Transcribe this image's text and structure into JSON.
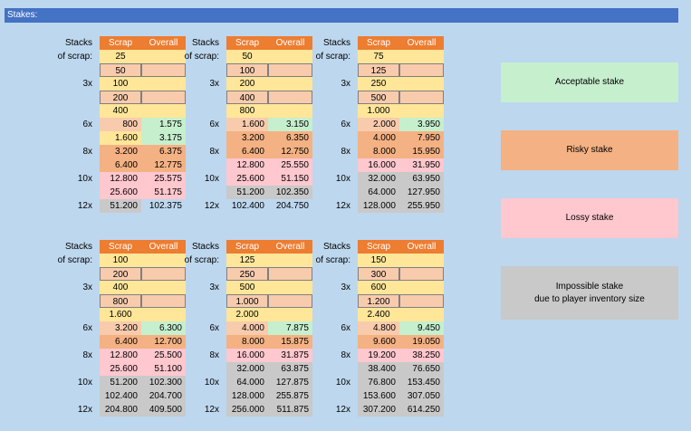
{
  "title": "Stakes:",
  "header": {
    "stacks": "Stacks",
    "of_scrap": "of scrap:",
    "scrap": "Scrap",
    "overall": "Overall"
  },
  "blocks": [
    {
      "rows": [
        {
          "m": "",
          "s": "25",
          "o": "",
          "sc": "y",
          "oc": "y"
        },
        {
          "m": "",
          "s": "50",
          "o": "",
          "sc": "o",
          "oc": "o"
        },
        {
          "m": "3x",
          "s": "100",
          "o": "",
          "sc": "y",
          "oc": "y"
        },
        {
          "m": "",
          "s": "200",
          "o": "",
          "sc": "o",
          "oc": "o"
        },
        {
          "m": "",
          "s": "400",
          "o": "",
          "sc": "y",
          "oc": "y"
        },
        {
          "m": "6x",
          "s": "800",
          "o": "1.575",
          "sc": "o",
          "oc": "g"
        },
        {
          "m": "",
          "s": "1.600",
          "o": "3.175",
          "sc": "y",
          "oc": "g"
        },
        {
          "m": "8x",
          "s": "3.200",
          "o": "6.375",
          "sc": "r",
          "oc": "r"
        },
        {
          "m": "",
          "s": "6.400",
          "o": "12.775",
          "sc": "r",
          "oc": "r"
        },
        {
          "m": "10x",
          "s": "12.800",
          "o": "25.575",
          "sc": "p",
          "oc": "p"
        },
        {
          "m": "",
          "s": "25.600",
          "o": "51.175",
          "sc": "p",
          "oc": "p"
        },
        {
          "m": "12x",
          "s": "51.200",
          "o": "102.375",
          "sc": "gr",
          "oc": "w"
        }
      ]
    },
    {
      "rows": [
        {
          "m": "",
          "s": "50",
          "o": "",
          "sc": "y",
          "oc": "y"
        },
        {
          "m": "",
          "s": "100",
          "o": "",
          "sc": "o",
          "oc": "o"
        },
        {
          "m": "3x",
          "s": "200",
          "o": "",
          "sc": "y",
          "oc": "y"
        },
        {
          "m": "",
          "s": "400",
          "o": "",
          "sc": "o",
          "oc": "o"
        },
        {
          "m": "",
          "s": "800",
          "o": "",
          "sc": "y",
          "oc": "y"
        },
        {
          "m": "6x",
          "s": "1.600",
          "o": "3.150",
          "sc": "o",
          "oc": "g"
        },
        {
          "m": "",
          "s": "3.200",
          "o": "6.350",
          "sc": "r",
          "oc": "r"
        },
        {
          "m": "8x",
          "s": "6.400",
          "o": "12.750",
          "sc": "r",
          "oc": "r"
        },
        {
          "m": "",
          "s": "12.800",
          "o": "25.550",
          "sc": "p",
          "oc": "p"
        },
        {
          "m": "10x",
          "s": "25.600",
          "o": "51.150",
          "sc": "p",
          "oc": "p"
        },
        {
          "m": "",
          "s": "51.200",
          "o": "102.350",
          "sc": "gr",
          "oc": "gr"
        },
        {
          "m": "12x",
          "s": "102.400",
          "o": "204.750",
          "sc": "w",
          "oc": "w"
        }
      ]
    },
    {
      "rows": [
        {
          "m": "",
          "s": "75",
          "o": "",
          "sc": "y",
          "oc": "y"
        },
        {
          "m": "",
          "s": "125",
          "o": "",
          "sc": "o",
          "oc": "o"
        },
        {
          "m": "3x",
          "s": "250",
          "o": "",
          "sc": "y",
          "oc": "y"
        },
        {
          "m": "",
          "s": "500",
          "o": "",
          "sc": "o",
          "oc": "o"
        },
        {
          "m": "",
          "s": "1.000",
          "o": "",
          "sc": "y",
          "oc": "y"
        },
        {
          "m": "6x",
          "s": "2.000",
          "o": "3.950",
          "sc": "o",
          "oc": "g"
        },
        {
          "m": "",
          "s": "4.000",
          "o": "7.950",
          "sc": "r",
          "oc": "r"
        },
        {
          "m": "8x",
          "s": "8.000",
          "o": "15.950",
          "sc": "r",
          "oc": "r"
        },
        {
          "m": "",
          "s": "16.000",
          "o": "31.950",
          "sc": "p",
          "oc": "p"
        },
        {
          "m": "10x",
          "s": "32.000",
          "o": "63.950",
          "sc": "gr",
          "oc": "gr"
        },
        {
          "m": "",
          "s": "64.000",
          "o": "127.950",
          "sc": "gr",
          "oc": "gr"
        },
        {
          "m": "12x",
          "s": "128.000",
          "o": "255.950",
          "sc": "gr",
          "oc": "gr"
        }
      ]
    },
    {
      "rows": [
        {
          "m": "",
          "s": "100",
          "o": "",
          "sc": "y",
          "oc": "y"
        },
        {
          "m": "",
          "s": "200",
          "o": "",
          "sc": "o",
          "oc": "o"
        },
        {
          "m": "3x",
          "s": "400",
          "o": "",
          "sc": "y",
          "oc": "y"
        },
        {
          "m": "",
          "s": "800",
          "o": "",
          "sc": "o",
          "oc": "o"
        },
        {
          "m": "",
          "s": "1.600",
          "o": "",
          "sc": "y",
          "oc": "y"
        },
        {
          "m": "6x",
          "s": "3.200",
          "o": "6.300",
          "sc": "o",
          "oc": "g"
        },
        {
          "m": "",
          "s": "6.400",
          "o": "12.700",
          "sc": "r",
          "oc": "r"
        },
        {
          "m": "8x",
          "s": "12.800",
          "o": "25.500",
          "sc": "p",
          "oc": "p"
        },
        {
          "m": "",
          "s": "25.600",
          "o": "51.100",
          "sc": "p",
          "oc": "p"
        },
        {
          "m": "10x",
          "s": "51.200",
          "o": "102.300",
          "sc": "gr",
          "oc": "gr"
        },
        {
          "m": "",
          "s": "102.400",
          "o": "204.700",
          "sc": "gr",
          "oc": "gr"
        },
        {
          "m": "12x",
          "s": "204.800",
          "o": "409.500",
          "sc": "gr",
          "oc": "gr"
        }
      ]
    },
    {
      "rows": [
        {
          "m": "",
          "s": "125",
          "o": "",
          "sc": "y",
          "oc": "y"
        },
        {
          "m": "",
          "s": "250",
          "o": "",
          "sc": "o",
          "oc": "o"
        },
        {
          "m": "3x",
          "s": "500",
          "o": "",
          "sc": "y",
          "oc": "y"
        },
        {
          "m": "",
          "s": "1.000",
          "o": "",
          "sc": "o",
          "oc": "o"
        },
        {
          "m": "",
          "s": "2.000",
          "o": "",
          "sc": "y",
          "oc": "y"
        },
        {
          "m": "6x",
          "s": "4.000",
          "o": "7.875",
          "sc": "o",
          "oc": "g"
        },
        {
          "m": "",
          "s": "8.000",
          "o": "15.875",
          "sc": "r",
          "oc": "r"
        },
        {
          "m": "8x",
          "s": "16.000",
          "o": "31.875",
          "sc": "p",
          "oc": "p"
        },
        {
          "m": "",
          "s": "32.000",
          "o": "63.875",
          "sc": "gr",
          "oc": "gr"
        },
        {
          "m": "10x",
          "s": "64.000",
          "o": "127.875",
          "sc": "gr",
          "oc": "gr"
        },
        {
          "m": "",
          "s": "128.000",
          "o": "255.875",
          "sc": "gr",
          "oc": "gr"
        },
        {
          "m": "12x",
          "s": "256.000",
          "o": "511.875",
          "sc": "gr",
          "oc": "gr"
        }
      ]
    },
    {
      "rows": [
        {
          "m": "",
          "s": "150",
          "o": "",
          "sc": "y",
          "oc": "y"
        },
        {
          "m": "",
          "s": "300",
          "o": "",
          "sc": "o",
          "oc": "o"
        },
        {
          "m": "3x",
          "s": "600",
          "o": "",
          "sc": "y",
          "oc": "y"
        },
        {
          "m": "",
          "s": "1.200",
          "o": "",
          "sc": "o",
          "oc": "o"
        },
        {
          "m": "",
          "s": "2.400",
          "o": "",
          "sc": "y",
          "oc": "y"
        },
        {
          "m": "6x",
          "s": "4.800",
          "o": "9.450",
          "sc": "o",
          "oc": "g"
        },
        {
          "m": "",
          "s": "9.600",
          "o": "19.050",
          "sc": "r",
          "oc": "r"
        },
        {
          "m": "8x",
          "s": "19.200",
          "o": "38.250",
          "sc": "p",
          "oc": "p"
        },
        {
          "m": "",
          "s": "38.400",
          "o": "76.650",
          "sc": "gr",
          "oc": "gr"
        },
        {
          "m": "10x",
          "s": "76.800",
          "o": "153.450",
          "sc": "gr",
          "oc": "gr"
        },
        {
          "m": "",
          "s": "153.600",
          "o": "307.050",
          "sc": "gr",
          "oc": "gr"
        },
        {
          "m": "12x",
          "s": "307.200",
          "o": "614.250",
          "sc": "gr",
          "oc": "gr"
        }
      ]
    }
  ],
  "legend": [
    {
      "label": "Acceptable stake",
      "color": "#c6efce"
    },
    {
      "label": "Risky stake",
      "color": "#f4b183"
    },
    {
      "label": "Lossy stake",
      "color": "#ffc7ce"
    },
    {
      "label": "Impossible stake\ndue to player inventory size",
      "color": "#c9c9c9"
    }
  ]
}
